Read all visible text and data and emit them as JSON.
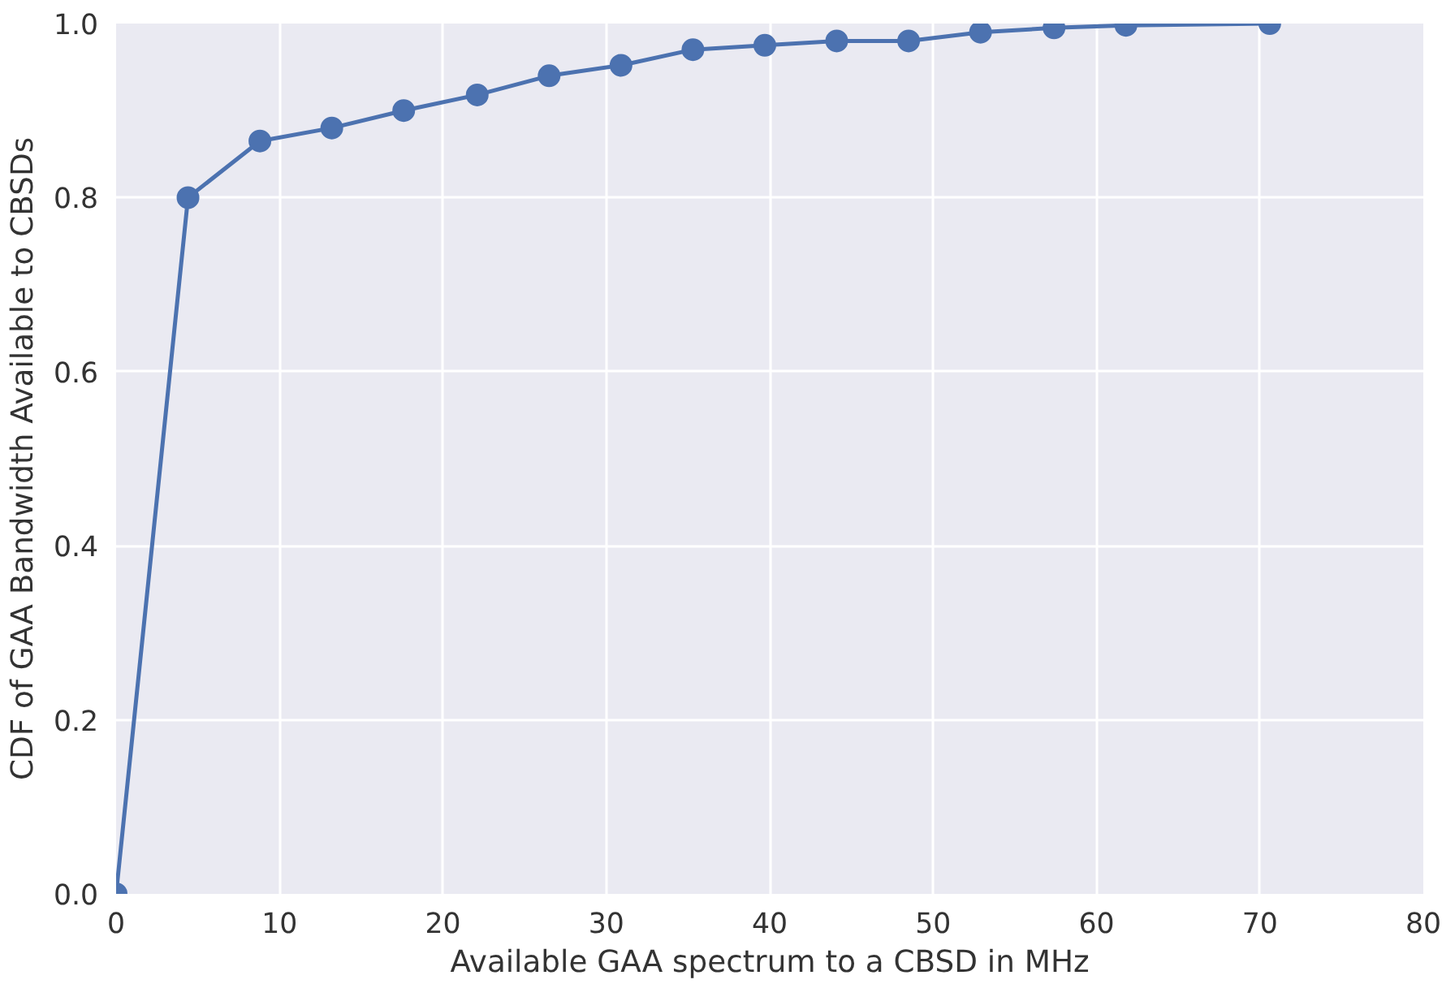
{
  "chart_data": {
    "type": "line",
    "xlabel": "Available GAA spectrum to a CBSD in MHz",
    "ylabel": "CDF of GAA Bandwidth Available to CBSDs",
    "x": [
      0,
      4.4,
      8.8,
      13.2,
      17.6,
      22.1,
      26.5,
      30.9,
      35.3,
      39.7,
      44.1,
      48.5,
      52.9,
      57.4,
      61.8,
      70.6
    ],
    "series": [
      {
        "color": "#4c72b0",
        "values": [
          0,
          0.8,
          0.865,
          0.88,
          0.9,
          0.918,
          0.94,
          0.952,
          0.97,
          0.975,
          0.98,
          0.98,
          0.99,
          0.995,
          0.998,
          1.0
        ]
      }
    ],
    "xlim": [
      0,
      80
    ],
    "ylim": [
      0,
      1.0
    ],
    "xticks": [
      0,
      10,
      20,
      30,
      40,
      50,
      60,
      70,
      80
    ],
    "yticks": [
      {
        "value": 0,
        "label": "0.0"
      },
      {
        "value": 0.2,
        "label": "0.2"
      },
      {
        "value": 0.4,
        "label": "0.4"
      },
      {
        "value": 0.6,
        "label": "0.6"
      },
      {
        "value": 0.8,
        "label": "0.8"
      },
      {
        "value": 1.0,
        "label": "1.0"
      }
    ],
    "grid": true,
    "marker": "circle",
    "line_style": "solid"
  }
}
